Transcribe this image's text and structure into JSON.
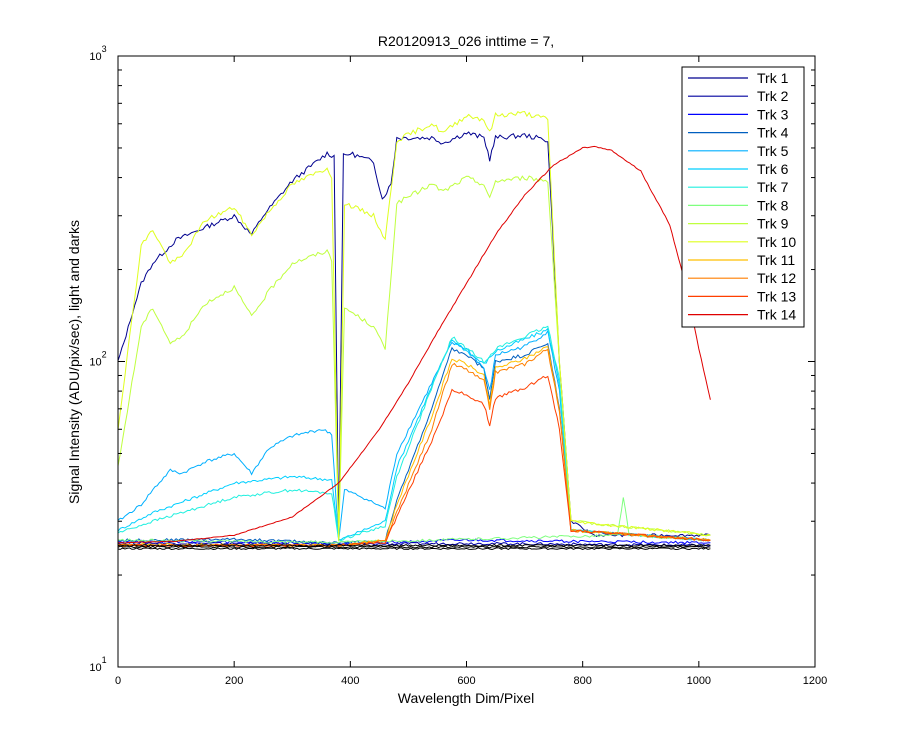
{
  "chart_data": {
    "type": "line",
    "title": "R20120913_026 inttime = 7,",
    "xlabel": "Wavelength Dim/Pixel",
    "ylabel": "Signal Intensity (ADU/pix/sec), light and darks",
    "xlim": [
      0,
      1200
    ],
    "ylim": [
      10,
      1000
    ],
    "yscale": "log",
    "grid": false,
    "legend_position": "top-right",
    "x_ticks": [
      "0",
      "200",
      "400",
      "600",
      "800",
      "1000",
      "1200"
    ],
    "y_ticks": [
      {
        "base": "10",
        "exp": "1",
        "value": 10
      },
      {
        "base": "10",
        "exp": "2",
        "value": 100
      },
      {
        "base": "10",
        "exp": "3",
        "value": 1000
      }
    ],
    "series": [
      {
        "name": "Trk 1",
        "color": "#00008f",
        "points": [
          [
            0,
            100
          ],
          [
            10,
            115
          ],
          [
            25,
            145
          ],
          [
            40,
            180
          ],
          [
            60,
            210
          ],
          [
            100,
            250
          ],
          [
            150,
            275
          ],
          [
            200,
            300
          ],
          [
            230,
            260
          ],
          [
            250,
            300
          ],
          [
            300,
            390
          ],
          [
            360,
            480
          ],
          [
            372,
            470
          ],
          [
            380,
            27
          ],
          [
            388,
            470
          ],
          [
            400,
            480
          ],
          [
            440,
            450
          ],
          [
            455,
            340
          ],
          [
            470,
            380
          ],
          [
            480,
            540
          ],
          [
            540,
            540
          ],
          [
            560,
            520
          ],
          [
            600,
            560
          ],
          [
            630,
            540
          ],
          [
            640,
            460
          ],
          [
            650,
            540
          ],
          [
            700,
            550
          ],
          [
            740,
            530
          ],
          [
            760,
            100
          ],
          [
            780,
            30
          ],
          [
            820,
            27
          ],
          [
            1020,
            27
          ]
        ]
      },
      {
        "name": "Trk 2",
        "color": "#00009f",
        "points": [
          [
            0,
            25.5
          ],
          [
            380,
            25.2
          ],
          [
            600,
            25.4
          ],
          [
            1020,
            25
          ]
        ]
      },
      {
        "name": "Trk 3",
        "color": "#0000ff",
        "points": [
          [
            0,
            25.8
          ],
          [
            380,
            25.4
          ],
          [
            600,
            26
          ],
          [
            1020,
            25.5
          ]
        ]
      },
      {
        "name": "Trk 4",
        "color": "#005fbf",
        "points": [
          [
            0,
            26
          ],
          [
            200,
            26.2
          ],
          [
            380,
            25.5
          ],
          [
            460,
            26
          ],
          [
            480,
            35
          ],
          [
            540,
            70
          ],
          [
            575,
            110
          ],
          [
            600,
            105
          ],
          [
            630,
            95
          ],
          [
            640,
            75
          ],
          [
            650,
            100
          ],
          [
            700,
            105
          ],
          [
            740,
            115
          ],
          [
            760,
            70
          ],
          [
            780,
            28
          ],
          [
            1020,
            26
          ]
        ]
      },
      {
        "name": "Trk 5",
        "color": "#00afff",
        "points": [
          [
            0,
            30
          ],
          [
            40,
            34
          ],
          [
            60,
            38
          ],
          [
            90,
            44
          ],
          [
            110,
            43
          ],
          [
            150,
            47
          ],
          [
            200,
            50
          ],
          [
            230,
            43
          ],
          [
            260,
            52
          ],
          [
            300,
            57
          ],
          [
            350,
            60
          ],
          [
            368,
            58
          ],
          [
            380,
            26
          ],
          [
            390,
            38
          ],
          [
            420,
            36
          ],
          [
            460,
            33
          ],
          [
            480,
            50
          ],
          [
            540,
            85
          ],
          [
            575,
            115
          ],
          [
            600,
            110
          ],
          [
            630,
            95
          ],
          [
            640,
            80
          ],
          [
            650,
            105
          ],
          [
            700,
            112
          ],
          [
            740,
            125
          ],
          [
            760,
            80
          ],
          [
            780,
            28
          ],
          [
            1020,
            26
          ]
        ]
      },
      {
        "name": "Trk 6",
        "color": "#00cfff",
        "points": [
          [
            0,
            28
          ],
          [
            60,
            32
          ],
          [
            200,
            40
          ],
          [
            300,
            42
          ],
          [
            368,
            41
          ],
          [
            380,
            26
          ],
          [
            460,
            30
          ],
          [
            480,
            45
          ],
          [
            575,
            118
          ],
          [
            630,
            98
          ],
          [
            650,
            108
          ],
          [
            740,
            127
          ],
          [
            760,
            85
          ],
          [
            780,
            28
          ],
          [
            1020,
            26
          ]
        ]
      },
      {
        "name": "Trk 7",
        "color": "#20efdf",
        "points": [
          [
            0,
            27.5
          ],
          [
            60,
            30
          ],
          [
            200,
            36
          ],
          [
            300,
            38
          ],
          [
            368,
            37
          ],
          [
            380,
            26
          ],
          [
            460,
            29
          ],
          [
            480,
            42
          ],
          [
            575,
            120
          ],
          [
            630,
            100
          ],
          [
            650,
            110
          ],
          [
            740,
            130
          ],
          [
            760,
            88
          ],
          [
            780,
            28
          ],
          [
            1020,
            26
          ]
        ]
      },
      {
        "name": "Trk 8",
        "color": "#7fff7f",
        "points": [
          [
            0,
            26
          ],
          [
            380,
            25.6
          ],
          [
            600,
            26.2
          ],
          [
            860,
            27
          ],
          [
            870,
            36
          ],
          [
            880,
            27
          ],
          [
            1020,
            26
          ]
        ]
      },
      {
        "name": "Trk 9",
        "color": "#bfff3f",
        "points": [
          [
            0,
            45
          ],
          [
            40,
            130
          ],
          [
            60,
            150
          ],
          [
            90,
            115
          ],
          [
            110,
            120
          ],
          [
            150,
            155
          ],
          [
            200,
            175
          ],
          [
            230,
            140
          ],
          [
            260,
            170
          ],
          [
            300,
            210
          ],
          [
            360,
            230
          ],
          [
            368,
            215
          ],
          [
            380,
            26
          ],
          [
            390,
            150
          ],
          [
            440,
            130
          ],
          [
            460,
            110
          ],
          [
            480,
            330
          ],
          [
            540,
            380
          ],
          [
            560,
            360
          ],
          [
            600,
            400
          ],
          [
            630,
            380
          ],
          [
            640,
            340
          ],
          [
            650,
            390
          ],
          [
            700,
            400
          ],
          [
            740,
            390
          ],
          [
            760,
            100
          ],
          [
            780,
            30
          ],
          [
            1020,
            27
          ]
        ]
      },
      {
        "name": "Trk 10",
        "color": "#dfff1f",
        "points": [
          [
            0,
            60
          ],
          [
            40,
            240
          ],
          [
            60,
            270
          ],
          [
            90,
            210
          ],
          [
            110,
            220
          ],
          [
            150,
            290
          ],
          [
            200,
            320
          ],
          [
            230,
            260
          ],
          [
            260,
            310
          ],
          [
            300,
            380
          ],
          [
            360,
            430
          ],
          [
            368,
            405
          ],
          [
            380,
            26
          ],
          [
            390,
            330
          ],
          [
            440,
            300
          ],
          [
            460,
            250
          ],
          [
            480,
            530
          ],
          [
            540,
            600
          ],
          [
            560,
            560
          ],
          [
            600,
            640
          ],
          [
            630,
            620
          ],
          [
            640,
            560
          ],
          [
            650,
            640
          ],
          [
            700,
            650
          ],
          [
            740,
            620
          ],
          [
            760,
            100
          ],
          [
            780,
            30
          ],
          [
            1020,
            27
          ]
        ]
      },
      {
        "name": "Trk 11",
        "color": "#ffbf00",
        "points": [
          [
            0,
            25.2
          ],
          [
            380,
            25
          ],
          [
            460,
            26
          ],
          [
            480,
            34
          ],
          [
            540,
            66
          ],
          [
            575,
            102
          ],
          [
            600,
            98
          ],
          [
            630,
            90
          ],
          [
            640,
            72
          ],
          [
            650,
            95
          ],
          [
            700,
            102
          ],
          [
            740,
            112
          ],
          [
            760,
            70
          ],
          [
            780,
            28
          ],
          [
            1020,
            26
          ]
        ]
      },
      {
        "name": "Trk 12",
        "color": "#ff7f00",
        "points": [
          [
            0,
            25
          ],
          [
            380,
            25
          ],
          [
            460,
            25.8
          ],
          [
            480,
            32
          ],
          [
            540,
            60
          ],
          [
            575,
            98
          ],
          [
            600,
            94
          ],
          [
            630,
            86
          ],
          [
            640,
            70
          ],
          [
            650,
            92
          ],
          [
            700,
            98
          ],
          [
            740,
            110
          ],
          [
            760,
            68
          ],
          [
            780,
            28
          ],
          [
            1020,
            26
          ]
        ]
      },
      {
        "name": "Trk 13",
        "color": "#ff3f00",
        "points": [
          [
            0,
            25
          ],
          [
            380,
            25
          ],
          [
            460,
            25.6
          ],
          [
            480,
            31
          ],
          [
            540,
            55
          ],
          [
            575,
            80
          ],
          [
            600,
            78
          ],
          [
            630,
            72
          ],
          [
            640,
            62
          ],
          [
            650,
            76
          ],
          [
            700,
            82
          ],
          [
            740,
            90
          ],
          [
            760,
            60
          ],
          [
            780,
            28
          ],
          [
            1020,
            26
          ]
        ]
      },
      {
        "name": "Trk 14",
        "color": "#df0000",
        "points": [
          [
            0,
            25.5
          ],
          [
            100,
            25.8
          ],
          [
            200,
            27
          ],
          [
            300,
            31
          ],
          [
            380,
            40
          ],
          [
            450,
            60
          ],
          [
            500,
            85
          ],
          [
            550,
            125
          ],
          [
            600,
            180
          ],
          [
            650,
            260
          ],
          [
            700,
            350
          ],
          [
            750,
            440
          ],
          [
            800,
            500
          ],
          [
            820,
            505
          ],
          [
            850,
            490
          ],
          [
            900,
            420
          ],
          [
            950,
            280
          ],
          [
            980,
            170
          ],
          [
            1000,
            110
          ],
          [
            1020,
            75
          ]
        ]
      }
    ]
  }
}
